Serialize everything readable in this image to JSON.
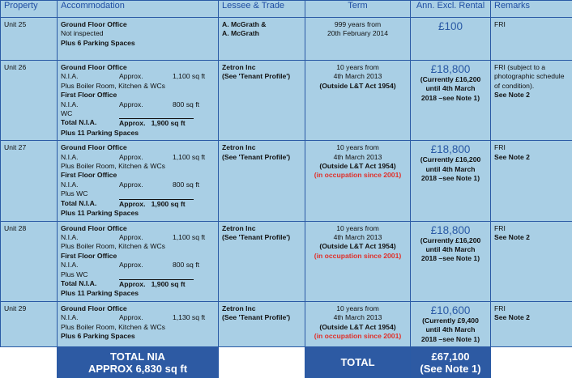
{
  "headers": [
    "Property",
    "Accommodation",
    "Lessee & Trade",
    "Term",
    "Ann. Excl. Rental",
    "Remarks"
  ],
  "rows": [
    {
      "unit": "Unit 25",
      "accommodation": [
        {
          "type": "bold",
          "text": "Ground Floor Office"
        },
        {
          "type": "plain",
          "text": "Not inspected"
        },
        {
          "type": "bold",
          "text": "Plus 6 Parking Spaces"
        }
      ],
      "lessee": [
        "A. McGrath &",
        "A. McGrath"
      ],
      "term": {
        "plain": [
          "999 years from",
          "20th February 2014"
        ],
        "bold": [],
        "red": ""
      },
      "rent": {
        "main": "£100",
        "sub": []
      },
      "remarks": {
        "plain": [
          "FRI"
        ],
        "bold": []
      }
    },
    {
      "unit": "Unit 26",
      "accommodation": [
        {
          "type": "bold",
          "text": "Ground Floor Office"
        },
        {
          "type": "nia",
          "label": "N.I.A.",
          "approx": "Approx.",
          "value": "1,100 sq ft"
        },
        {
          "type": "plain",
          "text": "Plus Boiler Room, Kitchen & WCs"
        },
        {
          "type": "bold",
          "text": "First Floor Office"
        },
        {
          "type": "nia",
          "label": "N.I.A.",
          "approx": "Approx.",
          "value": "800 sq ft"
        },
        {
          "type": "plain",
          "text": "WC"
        },
        {
          "type": "total",
          "label": "Total N.I.A.",
          "value": "Approx.   1,900 sq ft"
        },
        {
          "type": "bold",
          "text": "Plus 11 Parking Spaces"
        }
      ],
      "lessee": [
        "Zetron Inc",
        "(See 'Tenant Profile')"
      ],
      "term": {
        "plain": [
          "10 years from",
          "4th March 2013"
        ],
        "bold": [
          "(Outside L&T Act 1954)"
        ],
        "red": ""
      },
      "rent": {
        "main": "£18,800",
        "sub": [
          "(Currently £16,200",
          "until 4th March",
          "2018 –see Note 1)"
        ]
      },
      "remarks": {
        "plain": [
          "FRI (subject to a",
          "photographic schedule",
          "of condition)."
        ],
        "bold": [
          "See Note 2"
        ]
      }
    },
    {
      "unit": "Unit 27",
      "accommodation": [
        {
          "type": "bold",
          "text": "Ground Floor Office"
        },
        {
          "type": "nia",
          "label": "N.I.A.",
          "approx": "Approx.",
          "value": "1,100 sq ft"
        },
        {
          "type": "plain",
          "text": "Plus Boiler Room, Kitchen & WCs"
        },
        {
          "type": "bold",
          "text": "First Floor Office"
        },
        {
          "type": "nia",
          "label": "N.I.A.",
          "approx": "Approx.",
          "value": "800 sq ft"
        },
        {
          "type": "plain",
          "text": "Plus WC"
        },
        {
          "type": "total",
          "label": "Total N.I.A.",
          "value": "Approx.   1,900 sq ft"
        },
        {
          "type": "bold",
          "text": "Plus 11 Parking Spaces"
        }
      ],
      "lessee": [
        "Zetron Inc",
        "(See 'Tenant Profile')"
      ],
      "term": {
        "plain": [
          "10 years from",
          "4th March 2013"
        ],
        "bold": [
          "(Outside L&T Act 1954)"
        ],
        "red": "(in occupation since 2001)"
      },
      "rent": {
        "main": "£18,800",
        "sub": [
          "(Currently £16,200",
          "until 4th March",
          "2018 –see Note 1)"
        ]
      },
      "remarks": {
        "plain": [
          "FRI"
        ],
        "bold": [
          "See Note 2"
        ]
      }
    },
    {
      "unit": "Unit 28",
      "accommodation": [
        {
          "type": "bold",
          "text": "Ground Floor Office"
        },
        {
          "type": "nia",
          "label": "N.I.A.",
          "approx": "Approx.",
          "value": "1,100 sq ft"
        },
        {
          "type": "plain",
          "text": "Plus Boiler Room, Kitchen & WCs"
        },
        {
          "type": "bold",
          "text": "First Floor Office"
        },
        {
          "type": "nia",
          "label": "N.I.A.",
          "approx": "Approx.",
          "value": "800 sq ft"
        },
        {
          "type": "plain",
          "text": "Plus WC"
        },
        {
          "type": "total",
          "label": "Total N.I.A.",
          "value": "Approx.   1,900 sq ft"
        },
        {
          "type": "bold",
          "text": "Plus 11 Parking Spaces"
        }
      ],
      "lessee": [
        "Zetron Inc",
        "(See 'Tenant Profile')"
      ],
      "term": {
        "plain": [
          "10 years from",
          "4th March 2013"
        ],
        "bold": [
          "(Outside L&T Act 1954)"
        ],
        "red": "(in occupation since 2001)"
      },
      "rent": {
        "main": "£18,800",
        "sub": [
          "(Currently £16,200",
          "until 4th March",
          "2018 –see Note 1)"
        ]
      },
      "remarks": {
        "plain": [
          "FRI"
        ],
        "bold": [
          "See Note 2"
        ]
      }
    },
    {
      "unit": "Unit 29",
      "accommodation": [
        {
          "type": "bold",
          "text": "Ground Floor Office"
        },
        {
          "type": "nia",
          "label": "N.I.A.",
          "approx": "Approx.",
          "value": "1,130 sq ft"
        },
        {
          "type": "plain",
          "text": "Plus Boiler Room, Kitchen & WCs"
        },
        {
          "type": "bold",
          "text": "Plus 6 Parking Spaces"
        }
      ],
      "lessee": [
        "Zetron Inc",
        "(See 'Tenant Profile')"
      ],
      "term": {
        "plain": [
          "10 years from",
          "4th March 2013"
        ],
        "bold": [
          "(Outside L&T Act 1954)"
        ],
        "red": "(in occupation since 2001)"
      },
      "rent": {
        "main": "£10,600",
        "sub": [
          "(Currently £9,400",
          "until 4th March",
          "2018 –see Note 1)"
        ]
      },
      "remarks": {
        "plain": [
          "FRI"
        ],
        "bold": [
          "See Note 2"
        ]
      }
    }
  ],
  "totals": {
    "nia": [
      "TOTAL NIA",
      "APPROX 6,830 sq ft"
    ],
    "label": "TOTAL",
    "rent": [
      "£67,100",
      "(See Note 1)"
    ]
  },
  "colors": {
    "header_text": "#1f4ea3",
    "cell_bg": "#a9cfe5",
    "navy": "#2d5aa3",
    "red": "#e0302a"
  }
}
